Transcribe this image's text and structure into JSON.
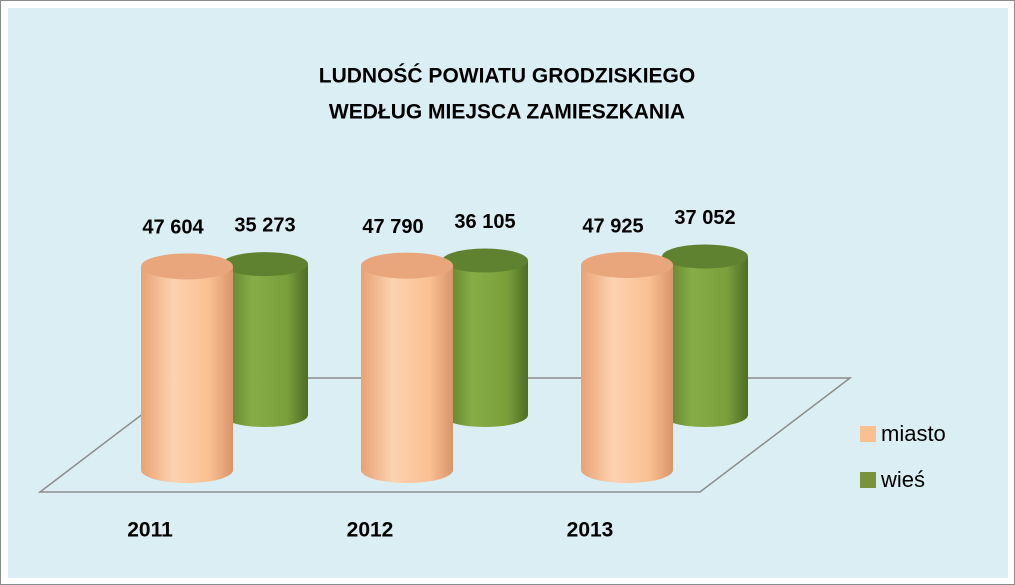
{
  "chart_data": {
    "type": "bar3d",
    "title": [
      "LUDNOŚĆ POWIATU GRODZISKIEGO",
      "WEDŁUG MIEJSCA ZAMIESZKANIA"
    ],
    "categories": [
      "2011",
      "2012",
      "2013"
    ],
    "series": [
      {
        "name": "miasto",
        "color": "#fac090",
        "values": [
          47604,
          47790,
          47925
        ],
        "value_labels": [
          "47 604",
          "47 790",
          "47 925"
        ]
      },
      {
        "name": "wieś",
        "color": "#77933c",
        "values": [
          35273,
          36105,
          37052
        ],
        "value_labels": [
          "35 273",
          "36 105",
          "37 052"
        ]
      }
    ],
    "legend": "right"
  }
}
